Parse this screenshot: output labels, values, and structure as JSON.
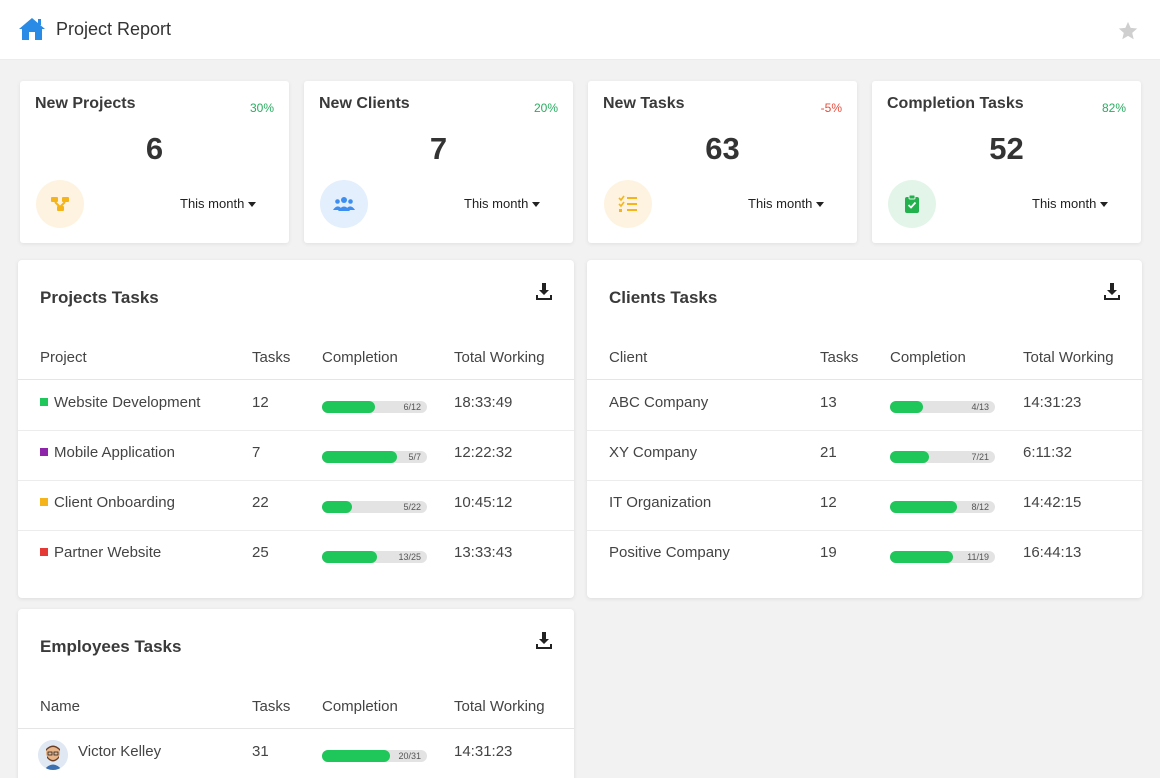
{
  "header": {
    "title": "Project Report",
    "home_icon": "home-icon",
    "star_icon": "star-icon"
  },
  "stats": [
    {
      "title": "New Projects",
      "percent": "30%",
      "percent_color": "#27ae60",
      "value": "6",
      "period": "This month",
      "icon": "project-diagram-icon",
      "icon_color": "#f5b41a",
      "icon_bg": "#fdf3e0"
    },
    {
      "title": "New Clients",
      "percent": "20%",
      "percent_color": "#27ae60",
      "value": "7",
      "period": "This month",
      "icon": "users-icon",
      "icon_color": "#3d8ef0",
      "icon_bg": "#e3effc"
    },
    {
      "title": "New Tasks",
      "percent": "-5%",
      "percent_color": "#e74c3c",
      "value": "63",
      "period": "This month",
      "icon": "task-list-icon",
      "icon_color": "#f5b41a",
      "icon_bg": "#fdf3e0"
    },
    {
      "title": "Completion Tasks",
      "percent": "82%",
      "percent_color": "#27ae60",
      "value": "52",
      "period": "This month",
      "icon": "clipboard-check-icon",
      "icon_color": "#22b14c",
      "icon_bg": "#e3f5e8"
    }
  ],
  "projects": {
    "title": "Projects Tasks",
    "columns": [
      "Project",
      "Tasks",
      "Completion",
      "Total Working"
    ],
    "rows": [
      {
        "name": "Website Development",
        "color": "#1fc65a",
        "tasks": "12",
        "completion": "6/12",
        "fraction": 0.5,
        "total": "18:33:49"
      },
      {
        "name": "Mobile Application",
        "color": "#8e24aa",
        "tasks": "7",
        "completion": "5/7",
        "fraction": 0.71,
        "total": "12:22:32"
      },
      {
        "name": "Client Onboarding",
        "color": "#f5b41a",
        "tasks": "22",
        "completion": "5/22",
        "fraction": 0.23,
        "total": "10:45:12"
      },
      {
        "name": "Partner Website",
        "color": "#e53935",
        "tasks": "25",
        "completion": "13/25",
        "fraction": 0.52,
        "total": "13:33:43"
      }
    ]
  },
  "clients": {
    "title": "Clients Tasks",
    "columns": [
      "Client",
      "Tasks",
      "Completion",
      "Total Working"
    ],
    "rows": [
      {
        "name": "ABC Company",
        "tasks": "13",
        "completion": "4/13",
        "fraction": 0.31,
        "total": "14:31:23"
      },
      {
        "name": "XY Company",
        "tasks": "21",
        "completion": "7/21",
        "fraction": 0.33,
        "total": "6:11:32"
      },
      {
        "name": "IT Organization",
        "tasks": "12",
        "completion": "8/12",
        "fraction": 0.67,
        "total": "14:42:15"
      },
      {
        "name": "Positive Company",
        "tasks": "19",
        "completion": "11/19",
        "fraction": 0.58,
        "total": "16:44:13"
      }
    ]
  },
  "employees": {
    "title": "Employees Tasks",
    "columns": [
      "Name",
      "Tasks",
      "Completion",
      "Total Working"
    ],
    "rows": [
      {
        "name": "Victor Kelley",
        "tasks": "31",
        "completion": "20/31",
        "fraction": 0.65,
        "total": "14:31:23"
      }
    ]
  }
}
